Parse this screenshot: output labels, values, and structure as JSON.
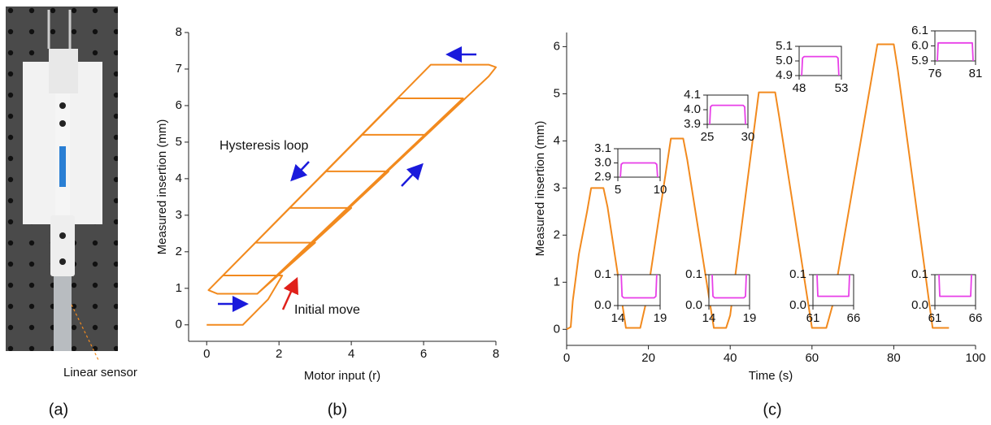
{
  "photo": {
    "annotation": "Linear sensor",
    "label": "(a)"
  },
  "chart_data": [
    {
      "type": "line",
      "panel_label": "(b)",
      "xlabel": "Motor input (r)",
      "ylabel": "Measured insertion (mm)",
      "color": "#f28a1e",
      "xlim": [
        -0.5,
        8.0
      ],
      "ylim": [
        -0.45,
        8.0
      ],
      "xticks": [
        0,
        2,
        4,
        6,
        8
      ],
      "yticks": [
        0,
        1,
        2,
        3,
        4,
        5,
        6,
        7,
        8
      ],
      "annotations": [
        {
          "text": "Hysteresis loop",
          "color": "#1a1adc"
        },
        {
          "text": "Initial move",
          "color": "#e0201a"
        }
      ],
      "x": [
        0,
        1,
        1.3,
        1.7,
        2.09,
        0.45,
        0.05,
        0.3,
        1.4,
        3.0,
        1.35,
        0.05,
        0.3,
        1.4,
        4.0,
        2.3,
        0.05,
        0.3,
        1.4,
        5.03,
        3.3,
        0.05,
        0.3,
        1.4,
        6.06,
        4.3,
        0.05,
        0.3,
        1.4,
        7.09,
        5.3,
        0.05,
        0.3,
        1.4,
        7.8,
        8.0,
        7.8,
        6.2,
        0.05,
        0.3,
        1.4
      ],
      "values": [
        0,
        0,
        0.3,
        0.7,
        1.35,
        1.35,
        0.95,
        0.85,
        0.85,
        2.25,
        2.25,
        0.95,
        0.85,
        0.85,
        3.2,
        3.2,
        0.95,
        0.85,
        0.85,
        4.2,
        4.2,
        0.95,
        0.85,
        0.85,
        5.2,
        5.2,
        0.95,
        0.85,
        0.85,
        6.2,
        6.2,
        0.95,
        0.85,
        0.85,
        6.8,
        7.05,
        7.12,
        7.12,
        0.95,
        0.85,
        0.85
      ]
    },
    {
      "type": "line",
      "panel_label": "(c)",
      "xlabel": "Time (s)",
      "ylabel": "Measured insertion (mm)",
      "color": "#f28a1e",
      "xlim": [
        0,
        100
      ],
      "ylim": [
        -0.34,
        6.3
      ],
      "xticks": [
        0,
        20,
        40,
        60,
        80,
        100
      ],
      "yticks": [
        0,
        1,
        2,
        3,
        4,
        5,
        6
      ],
      "x": [
        0,
        1,
        1.5,
        3,
        5,
        6,
        9,
        10,
        14.5,
        18,
        19.5,
        25.5,
        28.5,
        29.5,
        36,
        39,
        40,
        47,
        51,
        52,
        60,
        63.5,
        65,
        76,
        80,
        81,
        89.5,
        93.5
      ],
      "values": [
        0,
        0.05,
        0.6,
        1.6,
        2.5,
        3.0,
        3.0,
        2.6,
        0.03,
        0.03,
        0.6,
        4.05,
        4.05,
        3.6,
        0.03,
        0.03,
        0.3,
        5.03,
        5.03,
        4.5,
        0.03,
        0.03,
        0.5,
        6.05,
        6.05,
        5.5,
        0.03,
        0.03
      ],
      "insets": [
        {
          "type": "line",
          "color": "#e83fe8",
          "xlim": [
            5,
            10
          ],
          "ylim": [
            2.9,
            3.1
          ],
          "xticks": [
            5,
            10
          ],
          "yticks": [
            2.9,
            {
              "value": 3,
              "label": "3.0"
            },
            3.1
          ],
          "x": [
            5.3,
            5.4,
            5.6,
            9.4,
            9.6,
            9.7
          ],
          "values": [
            2.9,
            2.99,
            3.0,
            3.0,
            2.99,
            2.9
          ]
        },
        {
          "type": "line",
          "color": "#e83fe8",
          "xlim": [
            25,
            30
          ],
          "ylim": [
            3.9,
            4.1
          ],
          "xticks": [
            25,
            30
          ],
          "yticks": [
            3.9,
            {
              "value": 4,
              "label": "4.0"
            },
            4.1
          ],
          "x": [
            25.3,
            25.4,
            25.6,
            29.4,
            29.6,
            29.7
          ],
          "values": [
            3.9,
            4.02,
            4.03,
            4.03,
            4.02,
            3.9
          ]
        },
        {
          "type": "line",
          "color": "#e83fe8",
          "xlim": [
            48,
            53
          ],
          "ylim": [
            4.9,
            5.1
          ],
          "xticks": [
            48,
            53
          ],
          "yticks": [
            4.9,
            {
              "value": 5,
              "label": "5.0"
            },
            5.1
          ],
          "x": [
            48.3,
            48.4,
            48.6,
            52.4,
            52.6,
            52.7
          ],
          "values": [
            4.9,
            5.02,
            5.03,
            5.03,
            5.02,
            4.9
          ]
        },
        {
          "type": "line",
          "color": "#e83fe8",
          "xlim": [
            76,
            81
          ],
          "ylim": [
            5.9,
            6.1
          ],
          "xticks": [
            76,
            81
          ],
          "yticks": [
            5.9,
            {
              "value": 6,
              "label": "6.0"
            },
            6.1
          ],
          "x": [
            76.3,
            76.4,
            76.6,
            80.4,
            80.6,
            80.7
          ],
          "values": [
            5.9,
            6.02,
            6.02,
            6.02,
            6.02,
            5.9
          ]
        },
        {
          "type": "line",
          "color": "#e83fe8",
          "xlim": [
            14,
            19
          ],
          "ylim": [
            0,
            0.1
          ],
          "xticks": [
            14,
            19
          ],
          "yticks": [
            {
              "value": 0,
              "label": "0.0"
            },
            0.1
          ],
          "x": [
            14.4,
            14.5,
            14.7,
            18.3,
            18.5,
            18.6
          ],
          "values": [
            0.1,
            0.03,
            0.025,
            0.025,
            0.03,
            0.1
          ]
        },
        {
          "type": "line",
          "color": "#e83fe8",
          "xlim": [
            14,
            19
          ],
          "ylim": [
            0,
            0.1
          ],
          "xticks": [
            14,
            19
          ],
          "yticks": [
            {
              "value": 0,
              "label": "0.0"
            },
            0.1
          ],
          "x": [
            14.4,
            14.5,
            14.7,
            18.3,
            18.5,
            18.6
          ],
          "values": [
            0.1,
            0.03,
            0.025,
            0.025,
            0.03,
            0.1
          ]
        },
        {
          "type": "line",
          "color": "#e83fe8",
          "xlim": [
            61,
            66
          ],
          "ylim": [
            0,
            0.1
          ],
          "xticks": [
            61,
            66
          ],
          "yticks": [
            {
              "value": 0,
              "label": "0.0"
            },
            0.1
          ],
          "x": [
            61.5,
            61.6,
            61.8,
            65.2,
            65.4,
            65.5
          ],
          "values": [
            0.1,
            0.03,
            0.03,
            0.03,
            0.03,
            0.1
          ]
        },
        {
          "type": "line",
          "color": "#e83fe8",
          "xlim": [
            61,
            66
          ],
          "ylim": [
            0,
            0.1
          ],
          "xticks": [
            61,
            66
          ],
          "yticks": [
            {
              "value": 0,
              "label": "0.0"
            },
            0.1
          ],
          "x": [
            61.5,
            61.6,
            61.8,
            65.2,
            65.4,
            65.5
          ],
          "values": [
            0.1,
            0.03,
            0.03,
            0.03,
            0.03,
            0.1
          ]
        }
      ]
    }
  ]
}
